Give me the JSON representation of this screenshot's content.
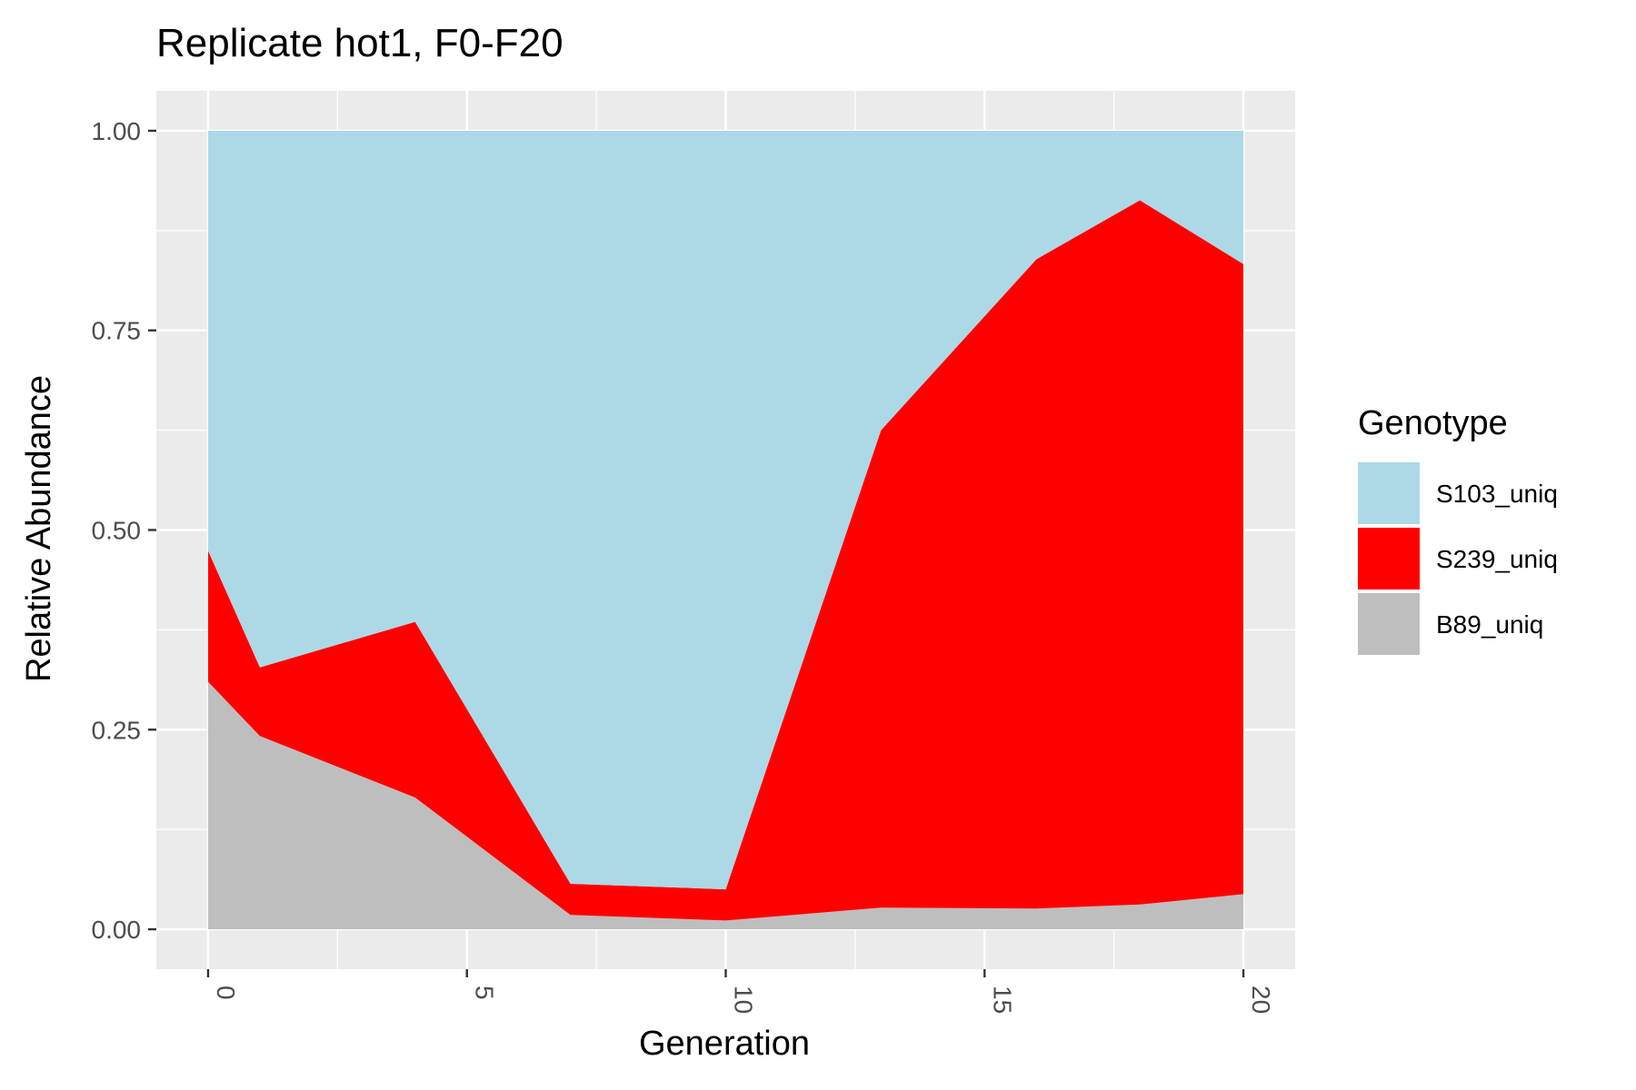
{
  "chart_data": {
    "type": "area",
    "stacked": true,
    "title": "Replicate hot1, F0-F20",
    "xlabel": "Generation",
    "ylabel": "Relative Abundance",
    "xlim": [
      -1,
      21
    ],
    "ylim": [
      -0.05,
      1.05
    ],
    "x_ticks": [
      0,
      5,
      10,
      15,
      20
    ],
    "x_tick_labels": [
      "0",
      "5",
      "10",
      "15",
      "20"
    ],
    "y_ticks": [
      0,
      0.25,
      0.5,
      0.75,
      1.0
    ],
    "y_tick_labels": [
      "0.00",
      "0.25",
      "0.50",
      "0.75",
      "1.00"
    ],
    "x": [
      0,
      1,
      4,
      7,
      10,
      13,
      16,
      18,
      20
    ],
    "series": [
      {
        "name": "B89_uniq",
        "color": "#bebebe",
        "values": [
          0.31,
          0.242,
          0.165,
          0.018,
          0.011,
          0.027,
          0.026,
          0.031,
          0.044
        ]
      },
      {
        "name": "S239_uniq",
        "color": "#ff0000",
        "values": [
          0.164,
          0.086,
          0.22,
          0.039,
          0.039,
          0.598,
          0.813,
          0.882,
          0.789
        ]
      },
      {
        "name": "S103_uniq",
        "color": "#add8e6",
        "values": [
          0.526,
          0.672,
          0.615,
          0.943,
          0.95,
          0.375,
          0.161,
          0.087,
          0.167
        ]
      }
    ],
    "legend": {
      "title": "Genotype",
      "position": "right",
      "items": [
        {
          "label": "S103_uniq",
          "color": "#add8e6"
        },
        {
          "label": "S239_uniq",
          "color": "#ff0000"
        },
        {
          "label": "B89_uniq",
          "color": "#bebebe"
        }
      ]
    },
    "panel_background": "#ebebeb",
    "grid": true,
    "x_tick_rotation": "vertical"
  }
}
